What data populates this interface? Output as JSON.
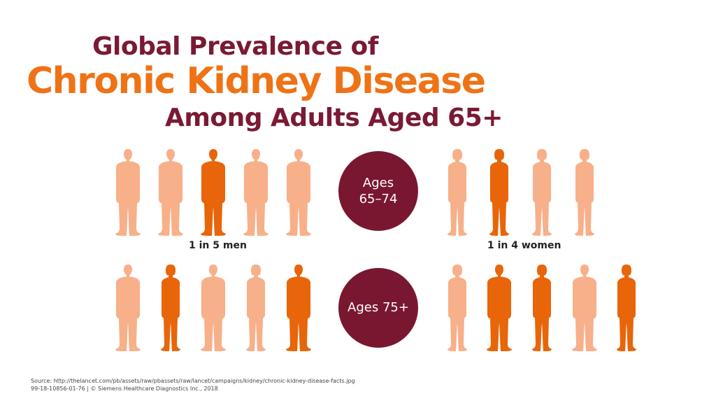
{
  "title": {
    "line1": "Global Prevalence of",
    "line2": "Chronic Kidney Disease",
    "line3": "Among Adults Aged 65+"
  },
  "colors": {
    "maroon": "#7A1A33",
    "orange": "#EE7316",
    "affected": "#E8650A",
    "unaffected": "#F7B08A",
    "circle": "#7A1730"
  },
  "groups": [
    {
      "age_label": "Ages\n65–74",
      "men_caption": "1 in 5 men",
      "women_caption": "1 in 4 women",
      "men": [
        {
          "type": "man",
          "affected": false
        },
        {
          "type": "man",
          "affected": false
        },
        {
          "type": "man",
          "affected": true
        },
        {
          "type": "man",
          "affected": false
        },
        {
          "type": "man",
          "affected": false
        }
      ],
      "women": [
        {
          "type": "woman",
          "affected": false
        },
        {
          "type": "woman",
          "affected": true
        },
        {
          "type": "woman",
          "affected": false
        },
        {
          "type": "woman",
          "affected": false
        }
      ]
    },
    {
      "age_label": "Ages 75+",
      "left": [
        {
          "type": "man",
          "affected": false
        },
        {
          "type": "woman",
          "affected": true
        },
        {
          "type": "man",
          "affected": false
        },
        {
          "type": "woman",
          "affected": false
        },
        {
          "type": "man",
          "affected": true
        }
      ],
      "right": [
        {
          "type": "woman",
          "affected": false
        },
        {
          "type": "man",
          "affected": true
        },
        {
          "type": "woman",
          "affected": true
        },
        {
          "type": "man",
          "affected": false
        },
        {
          "type": "woman",
          "affected": true
        }
      ]
    }
  ],
  "footer": {
    "source": "Source: http://thelancet.com/pb/assets/raw/pbassets/raw/lancet/campaigns/kidney/chronic-kidney-disease-facts.jpg",
    "copyright": "99-18-10856-01-76  |  © Siemens Healthcare Diagnostics Inc., 2018"
  }
}
